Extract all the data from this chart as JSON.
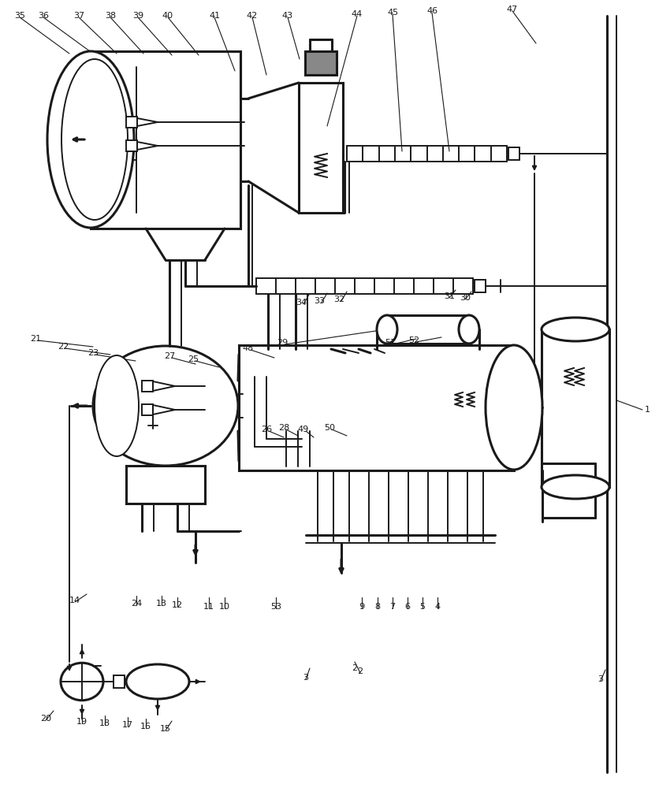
{
  "bg_color": "#ffffff",
  "lc": "#1a1a1a",
  "lw": 1.4,
  "lw2": 2.2,
  "lw3": 3.0,
  "figsize": [
    8.36,
    10.0
  ],
  "dpi": 100
}
